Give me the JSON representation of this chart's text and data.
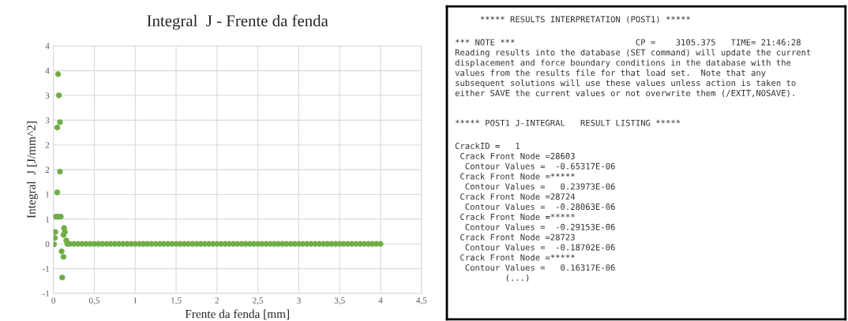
{
  "chart_data": [
    {
      "type": "scatter",
      "title": "Integral  J - Frente da fenda",
      "xlabel": "Frente da fenda [mm]",
      "ylabel": "Integral  J [J/mm^2]",
      "series": [
        {
          "color": "#70ad47",
          "x": [
            0.057,
            0.067,
            0.08,
            0.047,
            0.08,
            0.047,
            0.03,
            0.057,
            0.09,
            0.023,
            0.017,
            0.007,
            0.13,
            0.14,
            0.123,
            0.1,
            0.123,
            0.107,
            0.157,
            0.17,
            0.2,
            0.25,
            0.3,
            0.35,
            0.4,
            0.45,
            0.5,
            0.55,
            0.6,
            0.65,
            0.7,
            0.75,
            0.8,
            0.85,
            0.9,
            0.95,
            1.0,
            1.05,
            1.1,
            1.15,
            1.2,
            1.25,
            1.3,
            1.35,
            1.4,
            1.45,
            1.5,
            1.55,
            1.6,
            1.65,
            1.7,
            1.75,
            1.8,
            1.85,
            1.9,
            1.95,
            2.0,
            2.05,
            2.1,
            2.15,
            2.2,
            2.25,
            2.3,
            2.35,
            2.4,
            2.45,
            2.5,
            2.55,
            2.6,
            2.65,
            2.7,
            2.75,
            2.8,
            2.85,
            2.9,
            2.95,
            3.0,
            3.05,
            3.1,
            3.15,
            3.2,
            3.25,
            3.3,
            3.35,
            3.4,
            3.45,
            3.5,
            3.55,
            3.6,
            3.65,
            3.7,
            3.75,
            3.8,
            3.85,
            3.9,
            3.95,
            4.0
          ],
          "values": [
            3.43,
            3.0,
            2.46,
            2.35,
            1.46,
            1.04,
            0.55,
            0.55,
            0.55,
            0.24,
            0.12,
            -0.01,
            0.32,
            0.24,
            0.18,
            -0.15,
            -0.26,
            -0.68,
            0.07,
            0.0,
            0.0,
            0.0,
            0.0,
            0.0,
            0.0,
            0.0,
            0.0,
            0.0,
            0.0,
            0.0,
            0.0,
            0.0,
            0.0,
            0.0,
            0.0,
            0.0,
            0.0,
            0.0,
            0.0,
            0.0,
            0.0,
            0.0,
            0.0,
            0.0,
            0.0,
            0.0,
            0.0,
            0.0,
            0.0,
            0.0,
            0.0,
            0.0,
            0.0,
            0.0,
            0.0,
            0.0,
            0.0,
            0.0,
            0.0,
            0.0,
            0.0,
            0.0,
            0.0,
            0.0,
            0.0,
            0.0,
            0.0,
            0.0,
            0.0,
            0.0,
            0.0,
            0.0,
            0.0,
            0.0,
            0.0,
            0.0,
            0.0,
            0.0,
            0.0,
            0.0,
            0.0,
            0.0,
            0.0,
            0.0,
            0.0,
            0.0,
            0.0,
            0.0,
            0.0,
            0.0,
            0.0,
            0.0,
            0.0,
            0.0,
            0.0,
            0.0,
            0.0
          ]
        }
      ],
      "xlim": [
        0,
        4.5
      ],
      "xticks": [
        0,
        {
          "value": 0.5,
          "label": "0,5"
        },
        1,
        {
          "value": 1.5,
          "label": "1,5"
        },
        2,
        {
          "value": 2.5,
          "label": "2,5"
        },
        3,
        {
          "value": 3.5,
          "label": "3,5"
        },
        4,
        {
          "value": 4.5,
          "label": "4,5"
        }
      ],
      "ylim": [
        -1,
        4
      ],
      "yticks": [
        -1,
        {
          "value": -0.5,
          "label": "-1"
        },
        0,
        {
          "value": 0.5,
          "label": "1"
        },
        1,
        {
          "value": 1.5,
          "label": "2"
        },
        2,
        {
          "value": 2.5,
          "label": "3"
        },
        3,
        {
          "value": 3.5,
          "label": "4"
        },
        4
      ],
      "grid": true,
      "marker": "circle"
    },
    {
      "type": "other",
      "annotations": [
        "     ***** RESULTS INTERPRETATION (POST1) *****",
        "*** NOTE ***                        CP =    3105.375   TIME= 21:46:28\nReading results into the database (SET command) will update the current\ndisplacement and force boundary conditions in the database with the\nvalues from the results file for that load set.  Note that any\nsubsequent solutions will use these values unless action is taken to\neither SAVE the current values or not overwrite them (/EXIT,NOSAVE).",
        "***** POST1 J-INTEGRAL   RESULT LISTING *****",
        "CrackID =   1\n Crack Front Node =28603\n  Contour Values =  -0.65317E-06\n Crack Front Node =*****\n  Contour Values =   0.23973E-06\n Crack Front Node =28724\n  Contour Values =  -0.28063E-06\n Crack Front Node =*****\n  Contour Values =  -0.29153E-06\n Crack Front Node =28723\n  Contour Values =  -0.18702E-06\n Crack Front Node =*****\n  Contour Values =   0.16317E-06\n          (...)"
      ]
    }
  ]
}
